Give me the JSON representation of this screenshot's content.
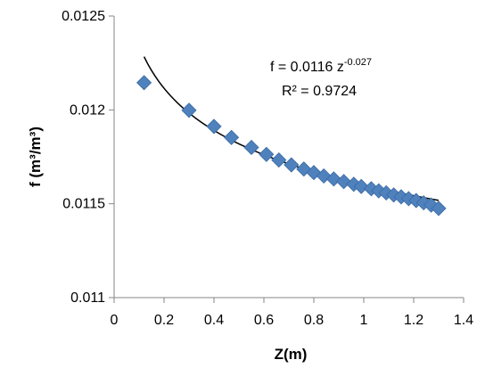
{
  "chart_data": {
    "type": "scatter",
    "title": "",
    "xlabel": "Z(m)",
    "ylabel": "f (m³/m³)",
    "xlim": [
      0,
      1.4
    ],
    "ylim": [
      0.011,
      0.0125
    ],
    "x_ticks": [
      "0",
      "0.2",
      "0.4",
      "0.6",
      "0.8",
      "1",
      "1.2",
      "1.4"
    ],
    "y_ticks": [
      "0.011",
      "0.0115",
      "0.012",
      "0.0125"
    ],
    "grid": false,
    "marker_color": "#4F81BD",
    "trendline_color": "#000000",
    "series": [
      {
        "marker": "diamond",
        "points": [
          {
            "x": 0.12,
            "y": 0.012145
          },
          {
            "x": 0.3,
            "y": 0.011998
          },
          {
            "x": 0.4,
            "y": 0.011912
          },
          {
            "x": 0.47,
            "y": 0.011853
          },
          {
            "x": 0.55,
            "y": 0.0118
          },
          {
            "x": 0.61,
            "y": 0.011763
          },
          {
            "x": 0.66,
            "y": 0.011733
          },
          {
            "x": 0.71,
            "y": 0.011707
          },
          {
            "x": 0.76,
            "y": 0.011685
          },
          {
            "x": 0.8,
            "y": 0.011666
          },
          {
            "x": 0.84,
            "y": 0.011648
          },
          {
            "x": 0.88,
            "y": 0.011632
          },
          {
            "x": 0.92,
            "y": 0.011618
          },
          {
            "x": 0.96,
            "y": 0.011604
          },
          {
            "x": 0.99,
            "y": 0.011592
          },
          {
            "x": 1.03,
            "y": 0.01158
          },
          {
            "x": 1.06,
            "y": 0.011569
          },
          {
            "x": 1.09,
            "y": 0.011558
          },
          {
            "x": 1.12,
            "y": 0.011547
          },
          {
            "x": 1.15,
            "y": 0.011537
          },
          {
            "x": 1.18,
            "y": 0.011527
          },
          {
            "x": 1.21,
            "y": 0.011517
          },
          {
            "x": 1.24,
            "y": 0.011505
          },
          {
            "x": 1.27,
            "y": 0.011493
          },
          {
            "x": 1.3,
            "y": 0.011475
          }
        ]
      }
    ],
    "trendline": {
      "type": "power",
      "coefficient": 0.0116,
      "exponent": -0.027,
      "x_range": [
        0.12,
        1.3
      ],
      "equation_base": "f = 0.0116 z",
      "equation_exponent": "-0.027",
      "r_squared_text": "R² = 0.9724"
    }
  }
}
